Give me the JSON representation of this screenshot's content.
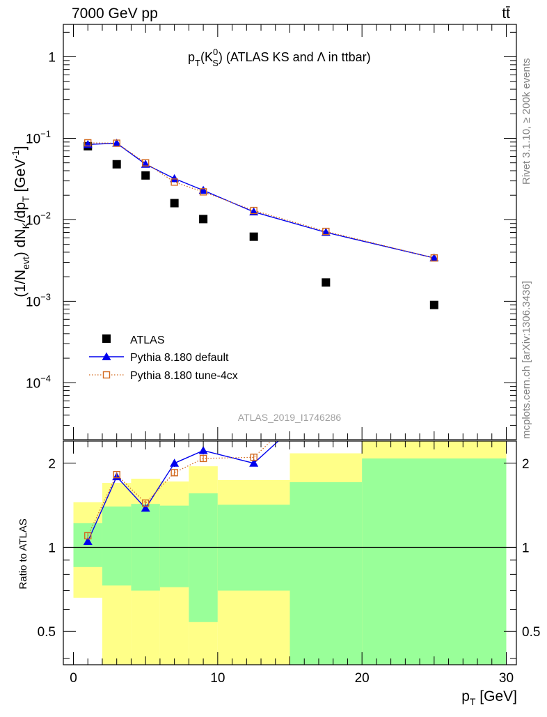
{
  "header": {
    "left": "7000 GeV pp",
    "right": "tt̄"
  },
  "side_text": {
    "rivet": "Rivet 3.1.10, ≥ 200k events",
    "mcplots": "mcplots.cern.ch [arXiv:1306.3436]"
  },
  "watermark": "ATLAS_2019_I1746286",
  "chart_data": [
    {
      "type": "scatter",
      "title": {
        "p": "p",
        "T": "T",
        "paren_open": "(K",
        "K_sup": "0",
        "K_sub": "S",
        "paren_close": ")",
        "rest": " (ATLAS KS and",
        "lambda": " Λ",
        "tail": " in ttbar)"
      },
      "ylabel": {
        "a": "(1/N",
        "a_sub": "evt",
        "b": ") dN",
        "b_sub": "K",
        "c": "/dp",
        "c_sub": "T",
        "d": " [GeV",
        "d_sup": "-1",
        "e": "]"
      },
      "yscale": "log",
      "ylim": [
        2e-05,
        2.5
      ],
      "xlim": [
        -0.7,
        30.7
      ],
      "y_ticks": [
        {
          "v": 1,
          "label": "1"
        },
        {
          "v": 0.1,
          "base": "10",
          "exp": "−1"
        },
        {
          "v": 0.01,
          "base": "10",
          "exp": "−2"
        },
        {
          "v": 0.001,
          "base": "10",
          "exp": "−3"
        },
        {
          "v": 0.0001,
          "base": "10",
          "exp": "−4"
        }
      ],
      "legend_position": "bottom-left",
      "series": [
        {
          "name": "ATLAS",
          "color": "#000000",
          "marker": "filled-square",
          "x": [
            1,
            3,
            5,
            7,
            9,
            12.5,
            17.5,
            25
          ],
          "y": [
            0.08,
            0.048,
            0.035,
            0.016,
            0.0102,
            0.0062,
            0.0017,
            0.0009
          ]
        },
        {
          "name": "Pythia 8.180 default",
          "color": "#0000ee",
          "marker": "filled-triangle",
          "line": "solid",
          "x": [
            1,
            3,
            5,
            7,
            9,
            12.5,
            17.5,
            25
          ],
          "y": [
            0.084,
            0.087,
            0.048,
            0.032,
            0.023,
            0.0125,
            0.007,
            0.0034
          ]
        },
        {
          "name": "Pythia 8.180 tune-4cx",
          "color": "#d2691e",
          "marker": "open-square",
          "line": "dotted",
          "x": [
            1,
            3,
            5,
            7,
            9,
            12.5,
            17.5,
            25
          ],
          "y": [
            0.088,
            0.087,
            0.05,
            0.029,
            0.022,
            0.013,
            0.0072,
            0.0034
          ]
        }
      ]
    },
    {
      "type": "line",
      "ylabel": "Ratio to ATLAS",
      "xlabel": {
        "main": "p",
        "sub": "T",
        "unit": " [GeV]"
      },
      "yscale": "log",
      "ylim": [
        0.38,
        2.4
      ],
      "xlim": [
        -0.7,
        30.7
      ],
      "x_ticks": [
        0,
        10,
        20,
        30
      ],
      "y_ticks": [
        {
          "v": 2,
          "label": "2"
        },
        {
          "v": 1,
          "label": "1"
        },
        {
          "v": 0.5,
          "label": "0.5"
        }
      ],
      "reference_line": 1,
      "bands": {
        "stat_color": "#99ff99",
        "total_color": "#ffff88",
        "bins": [
          {
            "x0": 0,
            "x1": 2,
            "in_lo": 0.85,
            "in_hi": 1.22,
            "out_lo": 0.66,
            "out_hi": 1.45
          },
          {
            "x0": 2,
            "x1": 4,
            "in_lo": 0.73,
            "in_hi": 1.4,
            "out_lo": 0.38,
            "out_hi": 1.7
          },
          {
            "x0": 4,
            "x1": 6,
            "in_lo": 0.7,
            "in_hi": 1.43,
            "out_lo": 0.38,
            "out_hi": 1.76
          },
          {
            "x0": 6,
            "x1": 8,
            "in_lo": 0.72,
            "in_hi": 1.41,
            "out_lo": 0.38,
            "out_hi": 1.72
          },
          {
            "x0": 8,
            "x1": 10,
            "in_lo": 0.54,
            "in_hi": 1.56,
            "out_lo": 0.38,
            "out_hi": 1.95
          },
          {
            "x0": 10,
            "x1": 15,
            "in_lo": 0.7,
            "in_hi": 1.42,
            "out_lo": 0.38,
            "out_hi": 1.74
          },
          {
            "x0": 15,
            "x1": 20,
            "in_lo": 0.38,
            "in_hi": 1.71,
            "out_lo": 0.38,
            "out_hi": 2.17
          },
          {
            "x0": 20,
            "x1": 30,
            "in_lo": 0.38,
            "in_hi": 2.08,
            "out_lo": 0.38,
            "out_hi": 2.4
          }
        ]
      },
      "series": [
        {
          "name": "Pythia 8.180 default",
          "color": "#0000ee",
          "marker": "filled-triangle",
          "line": "solid",
          "x": [
            1,
            3,
            5,
            7,
            9,
            12.5,
            14.2
          ],
          "y": [
            1.05,
            1.79,
            1.38,
            2.0,
            2.22,
            2.0,
            2.4
          ],
          "err": [
            0.02,
            0.03,
            0.03,
            0.06,
            0.07,
            0.04,
            0
          ]
        },
        {
          "name": "Pythia 8.180 tune-4cx",
          "color": "#d2691e",
          "marker": "open-square",
          "line": "dotted",
          "x": [
            1,
            3,
            5,
            7,
            9,
            12.5,
            13.7
          ],
          "y": [
            1.1,
            1.82,
            1.44,
            1.85,
            2.08,
            2.1,
            2.4
          ],
          "err": [
            0.03,
            0.03,
            0.03,
            0.05,
            0.06,
            0.05,
            0
          ]
        }
      ]
    }
  ]
}
